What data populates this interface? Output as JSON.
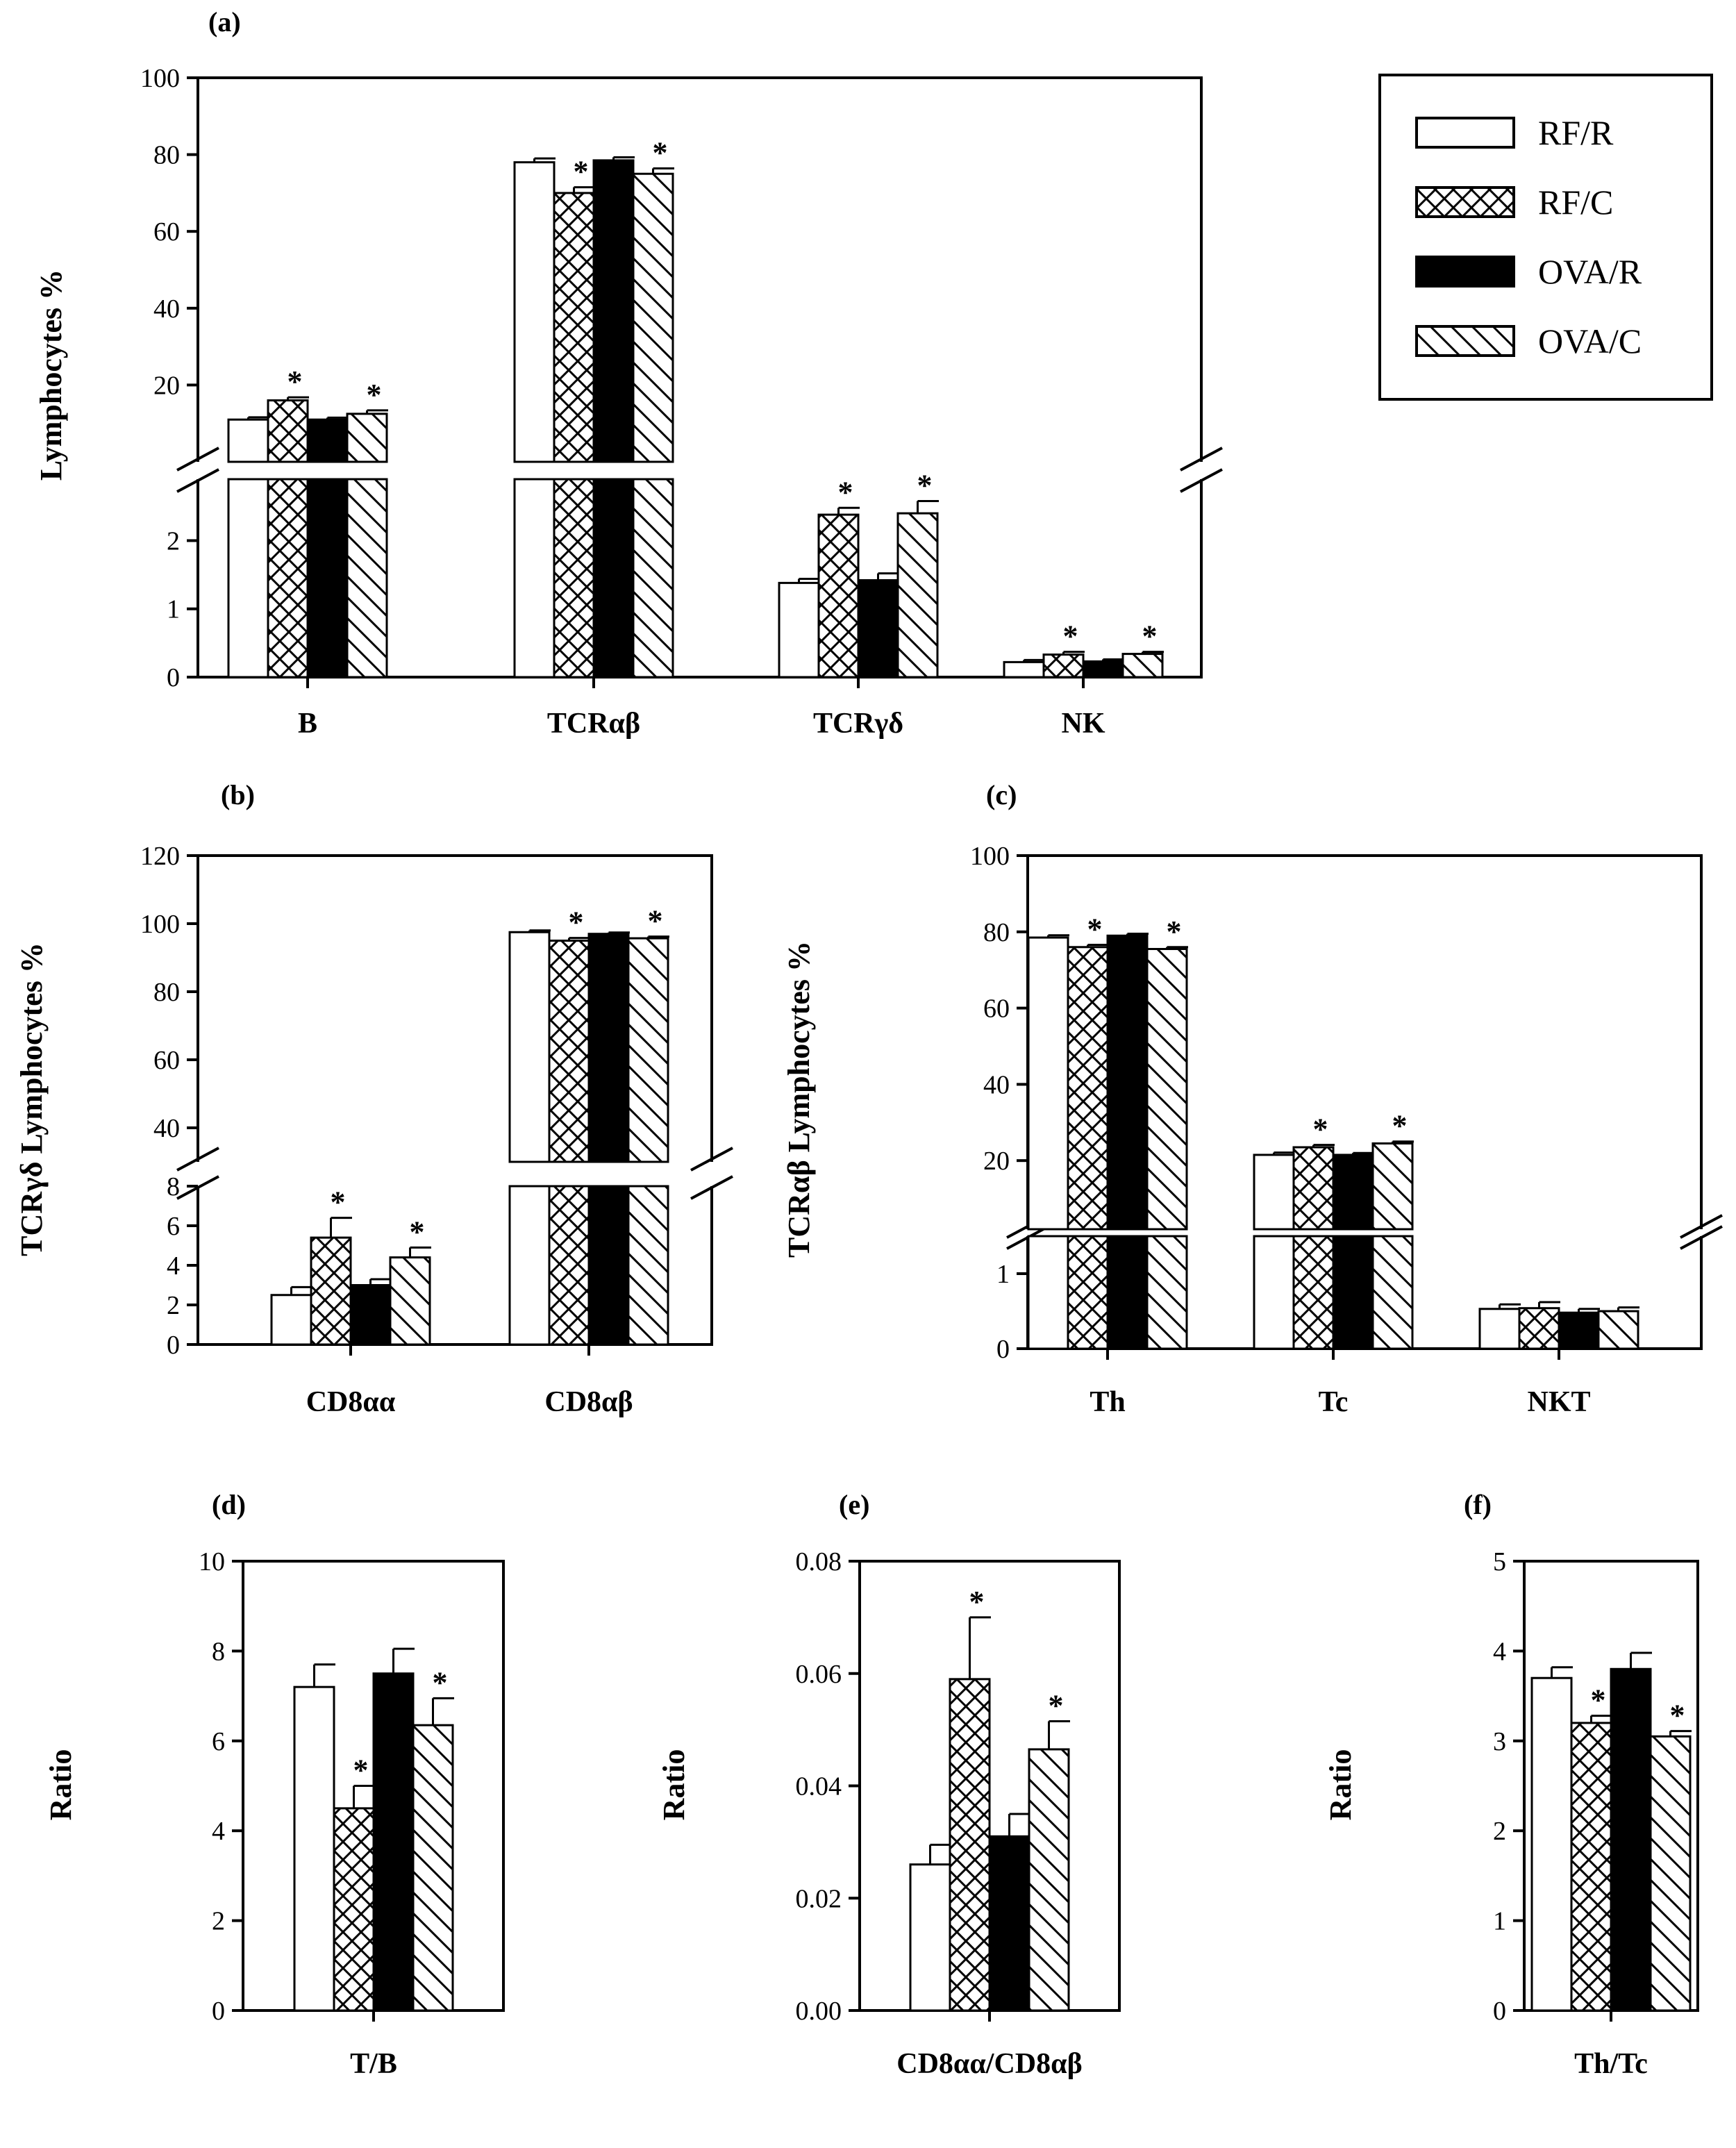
{
  "legend": {
    "entries": [
      {
        "label": "RF/R",
        "pattern": "open"
      },
      {
        "label": "RF/C",
        "pattern": "crosshatch"
      },
      {
        "label": "OVA/R",
        "pattern": "solid"
      },
      {
        "label": "OVA/C",
        "pattern": "diagonal"
      }
    ]
  },
  "colors": {
    "ink": "#000000",
    "paper": "#ffffff"
  },
  "chart_data": [
    {
      "type": "bar",
      "panel": "(a)",
      "ylabel": "Lymphocytes %",
      "categories": [
        "B",
        "TCRαβ",
        "TCRγδ",
        "NK"
      ],
      "axis_upper": {
        "ylim": [
          0,
          100
        ],
        "ticks": [
          "20",
          "40",
          "60",
          "80",
          "100"
        ]
      },
      "axis_lower": {
        "ylim": [
          0,
          2.9
        ],
        "ticks": [
          "0",
          "1",
          "2"
        ]
      },
      "series": [
        {
          "name": "RF/R",
          "values": [
            11,
            78,
            1.38,
            0.22
          ],
          "errors": [
            0.6,
            1.0,
            0.06,
            0.03
          ],
          "sig": [
            false,
            false,
            false,
            false
          ]
        },
        {
          "name": "RF/C",
          "values": [
            16,
            70,
            2.38,
            0.33
          ],
          "errors": [
            0.8,
            1.5,
            0.1,
            0.04
          ],
          "sig": [
            true,
            true,
            true,
            true
          ]
        },
        {
          "name": "OVA/R",
          "values": [
            11,
            78.5,
            1.42,
            0.23
          ],
          "errors": [
            0.5,
            0.8,
            0.1,
            0.03
          ],
          "sig": [
            false,
            false,
            false,
            false
          ]
        },
        {
          "name": "OVA/C",
          "values": [
            12.5,
            75,
            2.4,
            0.34
          ],
          "errors": [
            0.9,
            1.4,
            0.18,
            0.03
          ],
          "sig": [
            true,
            true,
            true,
            true
          ]
        }
      ],
      "markers": [
        "*",
        "*",
        "*",
        "*",
        "*",
        "*",
        "*",
        "*"
      ]
    },
    {
      "type": "bar",
      "panel": "(b)",
      "ylabel": "TCRγδ Lymphocytes %",
      "categories": [
        "CD8αα",
        "CD8αβ"
      ],
      "axis_upper": {
        "ylim": [
          30,
          120
        ],
        "ticks": [
          "40",
          "60",
          "80",
          "100",
          "120"
        ]
      },
      "axis_lower": {
        "ylim": [
          0,
          8
        ],
        "ticks": [
          "0",
          "2",
          "4",
          "6",
          "8"
        ]
      },
      "series": [
        {
          "name": "RF/R",
          "values": [
            2.5,
            97.5
          ],
          "errors": [
            0.4,
            0.5
          ],
          "sig": [
            false,
            false
          ]
        },
        {
          "name": "RF/C",
          "values": [
            5.4,
            95
          ],
          "errors": [
            1.0,
            0.8
          ],
          "sig": [
            true,
            true
          ]
        },
        {
          "name": "OVA/R",
          "values": [
            3.0,
            97
          ],
          "errors": [
            0.3,
            0.4
          ],
          "sig": [
            false,
            false
          ]
        },
        {
          "name": "OVA/C",
          "values": [
            4.4,
            95.7
          ],
          "errors": [
            0.5,
            0.5
          ],
          "sig": [
            true,
            true
          ]
        }
      ],
      "markers": [
        "*",
        "*",
        "*",
        "*"
      ]
    },
    {
      "type": "bar",
      "panel": "(c)",
      "ylabel": "TCRαβ Lymphocytes %",
      "categories": [
        "Th",
        "Tc",
        "NKT"
      ],
      "axis_upper": {
        "ylim": [
          2,
          100
        ],
        "ticks": [
          "20",
          "40",
          "60",
          "80",
          "100"
        ]
      },
      "axis_lower": {
        "ylim": [
          0,
          1.5
        ],
        "ticks": [
          "0",
          "1"
        ]
      },
      "series": [
        {
          "name": "RF/R",
          "values": [
            78.5,
            21.5,
            0.53
          ],
          "errors": [
            0.6,
            0.6,
            0.06
          ],
          "sig": [
            false,
            false,
            false
          ]
        },
        {
          "name": "RF/C",
          "values": [
            76,
            23.5,
            0.54
          ],
          "errors": [
            0.6,
            0.6,
            0.08
          ],
          "sig": [
            true,
            true,
            false
          ]
        },
        {
          "name": "OVA/R",
          "values": [
            79,
            21.5,
            0.48
          ],
          "errors": [
            0.5,
            0.5,
            0.05
          ],
          "sig": [
            false,
            false,
            false
          ]
        },
        {
          "name": "OVA/C",
          "values": [
            75.5,
            24.5,
            0.5
          ],
          "errors": [
            0.5,
            0.5,
            0.05
          ],
          "sig": [
            true,
            true,
            false
          ]
        }
      ],
      "markers": [
        "*",
        "*",
        "*",
        "*"
      ]
    },
    {
      "type": "bar",
      "panel": "(d)",
      "ylabel": "Ratio",
      "categories": [
        "T/B"
      ],
      "ylim": [
        0,
        10
      ],
      "ticks": [
        "0",
        "2",
        "4",
        "6",
        "8",
        "10"
      ],
      "series": [
        {
          "name": "RF/R",
          "values": [
            7.2
          ],
          "errors": [
            0.5
          ],
          "sig": [
            false
          ]
        },
        {
          "name": "RF/C",
          "values": [
            4.5
          ],
          "errors": [
            0.5
          ],
          "sig": [
            true
          ]
        },
        {
          "name": "OVA/R",
          "values": [
            7.5
          ],
          "errors": [
            0.55
          ],
          "sig": [
            false
          ]
        },
        {
          "name": "OVA/C",
          "values": [
            6.35
          ],
          "errors": [
            0.6
          ],
          "sig": [
            true
          ]
        }
      ],
      "markers": [
        "*",
        "*"
      ]
    },
    {
      "type": "bar",
      "panel": "(e)",
      "ylabel": "Ratio",
      "categories": [
        "CD8αα/CD8αβ"
      ],
      "ylim": [
        0,
        0.08
      ],
      "ticks": [
        "0.00",
        "0.02",
        "0.04",
        "0.06",
        "0.08"
      ],
      "series": [
        {
          "name": "RF/R",
          "values": [
            0.026
          ],
          "errors": [
            0.0035
          ],
          "sig": [
            false
          ]
        },
        {
          "name": "RF/C",
          "values": [
            0.059
          ],
          "errors": [
            0.011
          ],
          "sig": [
            true
          ]
        },
        {
          "name": "OVA/R",
          "values": [
            0.031
          ],
          "errors": [
            0.004
          ],
          "sig": [
            false
          ]
        },
        {
          "name": "OVA/C",
          "values": [
            0.0465
          ],
          "errors": [
            0.005
          ],
          "sig": [
            true
          ]
        }
      ],
      "markers": [
        "*",
        "*"
      ]
    },
    {
      "type": "bar",
      "panel": "(f)",
      "ylabel": "Ratio",
      "categories": [
        "Th/Tc"
      ],
      "ylim": [
        0,
        5
      ],
      "ticks": [
        "0",
        "1",
        "2",
        "3",
        "4",
        "5"
      ],
      "series": [
        {
          "name": "RF/R",
          "values": [
            3.7
          ],
          "errors": [
            0.12
          ],
          "sig": [
            false
          ]
        },
        {
          "name": "RF/C",
          "values": [
            3.2
          ],
          "errors": [
            0.08
          ],
          "sig": [
            true
          ]
        },
        {
          "name": "OVA/R",
          "values": [
            3.8
          ],
          "errors": [
            0.18
          ],
          "sig": [
            false
          ]
        },
        {
          "name": "OVA/C",
          "values": [
            3.05
          ],
          "errors": [
            0.06
          ],
          "sig": [
            true
          ]
        }
      ],
      "markers": [
        "*",
        "*"
      ]
    }
  ]
}
